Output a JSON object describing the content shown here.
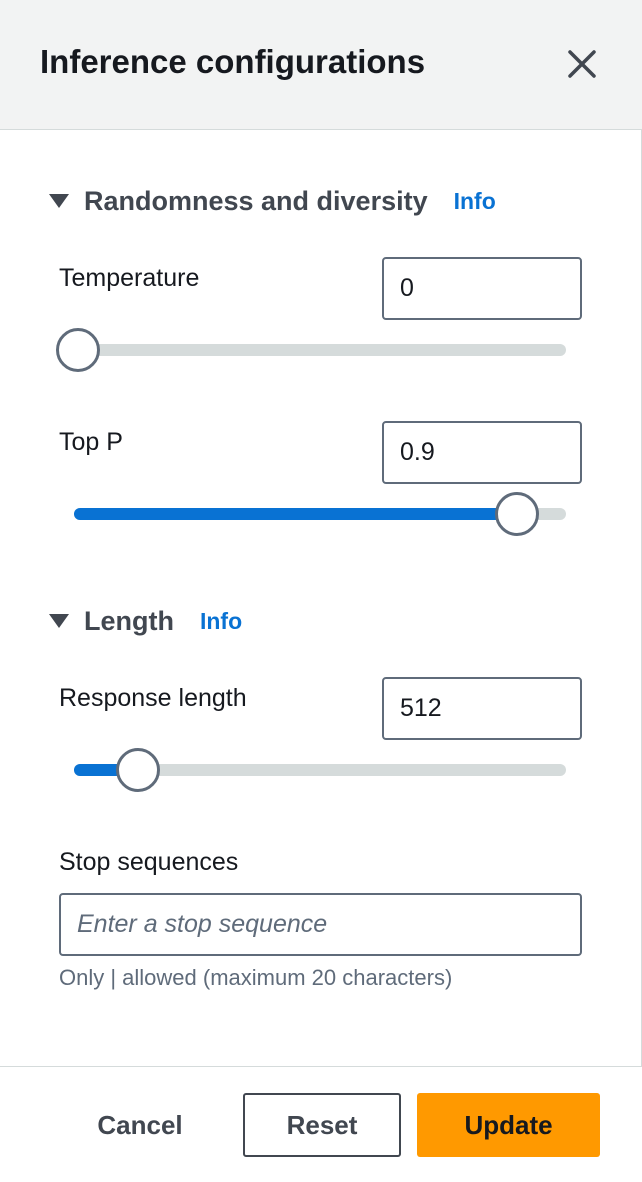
{
  "panel": {
    "title": "Inference configurations"
  },
  "randomness": {
    "title": "Randomness and diversity",
    "info": "Info",
    "temperature": {
      "label": "Temperature",
      "value": "0",
      "slider_fraction": 0.0
    },
    "top_p": {
      "label": "Top P",
      "value": "0.9",
      "slider_fraction": 0.9
    }
  },
  "length": {
    "title": "Length",
    "info": "Info",
    "response_length": {
      "label": "Response length",
      "value": "512",
      "slider_fraction": 0.13
    },
    "stop_sequences": {
      "label": "Stop sequences",
      "placeholder": "Enter a stop sequence",
      "hint": "Only | allowed (maximum 20 characters)"
    }
  },
  "footer": {
    "cancel": "Cancel",
    "reset": "Reset",
    "update": "Update"
  },
  "colors": {
    "accent": "#0972d3",
    "primary_button": "#ff9900",
    "header_bg": "#f2f3f3"
  },
  "icons": {
    "close": "close-icon",
    "caret": "caret-down-icon"
  }
}
